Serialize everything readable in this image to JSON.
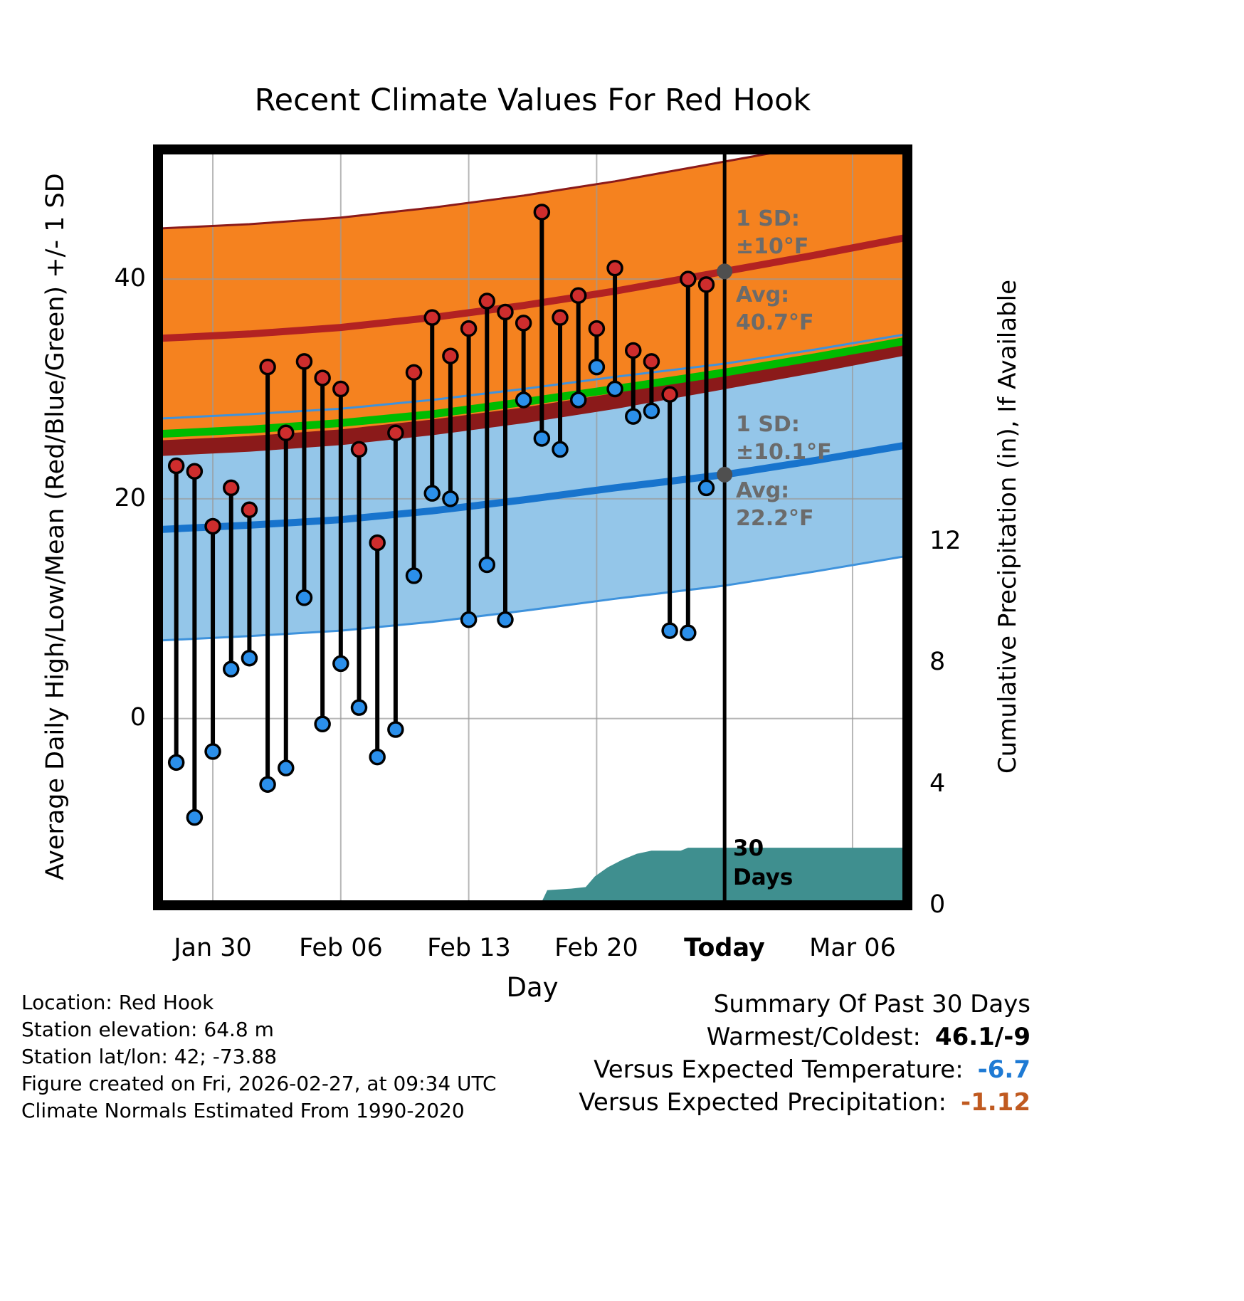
{
  "chart_data": {
    "type": "line",
    "title": "Recent Climate Values For Red Hook",
    "xlabel": "Day",
    "ylabel_left": "Average Daily High/Low/Mean (Red/Blue/Green) +/- 1 SD",
    "ylabel_right": "Cumulative Precipitation (in), If Available",
    "xlim_days_from_jan30": [
      -3,
      38
    ],
    "ylim_left_degF": [
      -17,
      51.8
    ],
    "ylim_right_inches": [
      0,
      24.93
    ],
    "x_ticks": [
      {
        "day": 0,
        "label": "Jan 30"
      },
      {
        "day": 7,
        "label": "Feb 06"
      },
      {
        "day": 14,
        "label": "Feb 13"
      },
      {
        "day": 21,
        "label": "Feb 20"
      },
      {
        "day": 28,
        "label": "Today"
      },
      {
        "day": 35,
        "label": "Mar 06"
      }
    ],
    "y_left_ticks": [
      {
        "value": 40,
        "label": "40"
      },
      {
        "value": 20,
        "label": "20"
      },
      {
        "value": 0,
        "label": "0"
      }
    ],
    "y_right_ticks": [
      {
        "value": 12,
        "label": "12"
      },
      {
        "value": 8,
        "label": "8"
      },
      {
        "value": 4,
        "label": "4"
      },
      {
        "value": 0,
        "label": "0"
      }
    ],
    "today_day": 28,
    "daily": {
      "days": [
        -2,
        -1,
        0,
        1,
        2,
        3,
        4,
        5,
        6,
        7,
        8,
        9,
        10,
        11,
        12,
        13,
        14,
        15,
        16,
        17,
        18,
        19,
        20,
        21,
        22,
        23,
        24,
        25,
        26,
        27
      ],
      "high_degF": [
        23,
        22.5,
        17.5,
        21,
        19,
        32,
        26,
        32.5,
        31,
        30,
        24.5,
        16,
        26,
        31.5,
        36.5,
        33,
        35.5,
        38,
        37,
        36,
        46.1,
        36.5,
        38.5,
        35.5,
        41,
        33.5,
        32.5,
        29.5,
        40,
        39.5
      ],
      "low_degF": [
        -4,
        -9,
        -3,
        4.5,
        5.5,
        -6,
        -4.5,
        11,
        -0.5,
        5,
        1,
        -3.5,
        -1,
        13,
        20.5,
        20,
        9,
        14,
        9,
        29,
        25.5,
        24.5,
        29,
        32,
        30,
        27.5,
        28,
        8,
        7.8,
        21
      ]
    },
    "normals": {
      "days": [
        -3,
        2,
        7,
        12,
        17,
        22,
        28,
        33,
        38
      ],
      "avg_high": [
        34.6,
        35.0,
        35.6,
        36.5,
        37.6,
        38.9,
        40.7,
        42.2,
        43.8
      ],
      "avg_low": [
        17.2,
        17.6,
        18.1,
        18.9,
        19.9,
        21.0,
        22.2,
        23.5,
        24.9
      ],
      "mean": [
        25.9,
        26.3,
        26.9,
        27.7,
        28.8,
        30.0,
        31.5,
        32.9,
        34.4
      ],
      "sd_high": 10,
      "sd_low": 10.1
    },
    "precip_steps": [
      [
        17.9,
        0
      ],
      [
        18.3,
        0.5
      ],
      [
        19.6,
        0.55
      ],
      [
        20.4,
        0.6
      ],
      [
        20.9,
        0.95
      ],
      [
        21.6,
        1.25
      ],
      [
        22.4,
        1.5
      ],
      [
        23.2,
        1.7
      ],
      [
        24.0,
        1.8
      ],
      [
        25.6,
        1.8
      ],
      [
        26.0,
        1.9
      ],
      [
        38,
        1.9
      ]
    ],
    "annotations": {
      "high_sd_lines": [
        "1 SD:",
        "±10°F"
      ],
      "high_avg_lines": [
        "Avg:",
        "40.7°F"
      ],
      "low_sd_lines": [
        "1 SD:",
        "±10.1°F"
      ],
      "low_avg_lines": [
        "Avg:",
        "22.2°F"
      ],
      "avg_high_today": 40.7,
      "avg_low_today": 22.2,
      "precip_label_lines": [
        "30",
        "Days"
      ]
    },
    "colors": {
      "high_band": "#F5821F",
      "high_line": "#B22222",
      "high_band_edge": "#8B1A1A",
      "low_band": "#94C6E9",
      "low_line": "#1874CD",
      "low_band_edge": "#3E92DC",
      "mean_line": "#00BB00",
      "precip_fill": "#3F8F8F",
      "stem": "#000000",
      "dot_high": "#CE2D2D",
      "dot_low": "#2B8FEA",
      "today_line": "#000000",
      "marker_gray": "#4F4F4F",
      "grid": "#9A9A9A",
      "annotation_gray": "#6B6B6B"
    }
  },
  "footer": {
    "lines": [
      "Location: Red Hook",
      "Station elevation: 64.8 m",
      "Station lat/lon: 42; -73.88",
      "Figure created on Fri, 2026-02-27, at 09:34 UTC",
      "Climate Normals Estimated From 1990-2020"
    ],
    "summary": {
      "title": "Summary Of Past 30 Days",
      "rows": [
        {
          "label": "Warmest/Coldest:",
          "value": "46.1/-9",
          "value_color": "#000000"
        },
        {
          "label": "Versus Expected Temperature:",
          "value": "-6.7",
          "value_color": "#1E7AD4"
        },
        {
          "label": "Versus Expected Precipitation:",
          "value": "-1.12",
          "value_color": "#C05A20"
        }
      ]
    }
  }
}
